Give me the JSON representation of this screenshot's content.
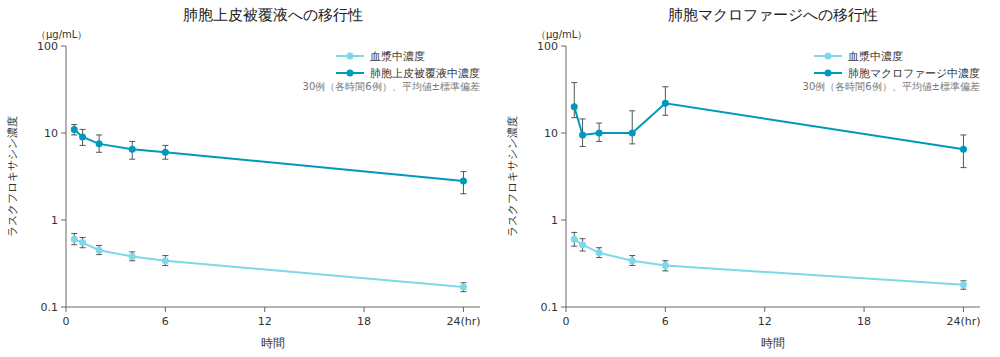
{
  "chart_data": [
    {
      "type": "line",
      "title": "肺胞上皮被覆液への移行性",
      "x_label": "時間",
      "y_label": "ラスクフロキサシン濃度",
      "annotations": [
        "（μg/mL）",
        "30例（各時間6例）、平均値±標準偏差"
      ],
      "x": [
        0.5,
        1,
        2,
        4,
        6,
        24
      ],
      "series": [
        {
          "name": "血漿中濃度",
          "color": "#7DD8E8",
          "marker": "circle",
          "line_style": "solid",
          "values": [
            0.6,
            0.55,
            0.45,
            0.38,
            0.34,
            0.17
          ],
          "error_lo": [
            0.08,
            0.07,
            0.05,
            0.04,
            0.04,
            0.02
          ],
          "error_hi": [
            0.1,
            0.08,
            0.06,
            0.05,
            0.05,
            0.02
          ]
        },
        {
          "name": "肺胞上皮被覆液中濃度",
          "color": "#0099BB",
          "marker": "circle",
          "line_style": "solid",
          "values": [
            11.0,
            9.0,
            7.5,
            6.5,
            6.0,
            2.8
          ],
          "error_lo": [
            1.5,
            1.8,
            1.5,
            1.5,
            1.0,
            0.8
          ],
          "error_hi": [
            1.5,
            2.0,
            2.0,
            1.5,
            1.2,
            0.8
          ]
        }
      ],
      "xlim": [
        0,
        25
      ],
      "xticks": [
        0,
        6,
        12,
        18,
        {
          "value": 24,
          "label": "24(hr)"
        }
      ],
      "ylim": [
        0.1,
        100
      ],
      "yticks": [
        0.1,
        1,
        10,
        100
      ],
      "log": "y",
      "grid": false,
      "legend": "upper right"
    },
    {
      "type": "line",
      "title": "肺胞マクロファージへの移行性",
      "x_label": "時間",
      "y_label": "ラスクフロキサシン濃度",
      "annotations": [
        "（μg/mL）",
        "30例（各時間6例）、平均値±標準偏差"
      ],
      "x": [
        0.5,
        1,
        2,
        4,
        6,
        24
      ],
      "series": [
        {
          "name": "血漿中濃度",
          "color": "#7DD8E8",
          "marker": "circle",
          "line_style": "solid",
          "values": [
            0.6,
            0.52,
            0.42,
            0.34,
            0.3,
            0.18
          ],
          "error_lo": [
            0.1,
            0.08,
            0.05,
            0.04,
            0.04,
            0.02
          ],
          "error_hi": [
            0.12,
            0.09,
            0.06,
            0.05,
            0.04,
            0.02
          ]
        },
        {
          "name": "肺胞マクロファージ中濃度",
          "color": "#0099BB",
          "marker": "circle",
          "line_style": "solid",
          "values": [
            20.0,
            9.5,
            10.0,
            10.0,
            22.0,
            6.5
          ],
          "error_lo": [
            5.0,
            2.5,
            2.0,
            2.5,
            6.0,
            2.5
          ],
          "error_hi": [
            18.0,
            5.0,
            3.0,
            8.0,
            12.0,
            3.0
          ]
        }
      ],
      "xlim": [
        0,
        25
      ],
      "xticks": [
        0,
        6,
        12,
        18,
        {
          "value": 24,
          "label": "24(hr)"
        }
      ],
      "ylim": [
        0.1,
        100
      ],
      "yticks": [
        0.1,
        1,
        10,
        100
      ],
      "log": "y",
      "grid": false,
      "legend": "upper right"
    }
  ]
}
